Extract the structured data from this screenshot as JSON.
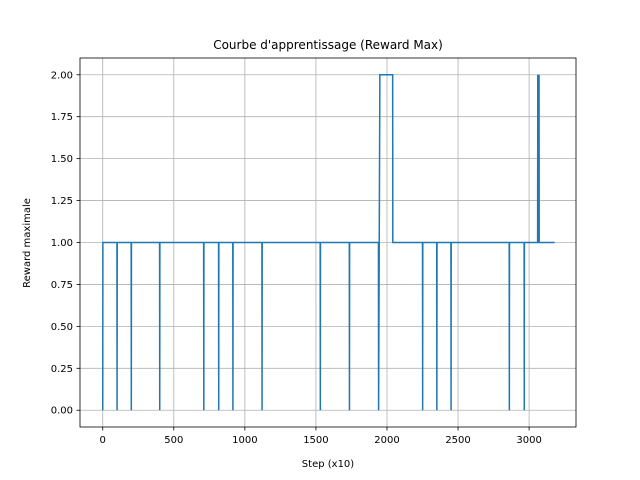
{
  "chart_data": {
    "type": "line",
    "title": "Courbe d'apprentissage (Reward Max)",
    "xlabel": "Step (x10)",
    "ylabel": "Reward maximale",
    "xlim": [
      -160,
      3330
    ],
    "ylim": [
      -0.1,
      2.1
    ],
    "xticks": [
      0,
      500,
      1000,
      1500,
      2000,
      2500,
      3000
    ],
    "yticks": [
      0.0,
      0.25,
      0.5,
      0.75,
      1.0,
      1.25,
      1.5,
      1.75,
      2.0
    ],
    "xtick_labels": [
      "0",
      "500",
      "1000",
      "1500",
      "2000",
      "2500",
      "3000"
    ],
    "ytick_labels": [
      "0.00",
      "0.25",
      "0.50",
      "0.75",
      "1.00",
      "1.25",
      "1.50",
      "1.75",
      "2.00"
    ],
    "grid": true,
    "color": "#1f77b4",
    "series": [
      {
        "name": "",
        "x": [
          0,
          1,
          100,
          101,
          102,
          200,
          201,
          202,
          400,
          401,
          402,
          710,
          711,
          712,
          815,
          816,
          817,
          915,
          916,
          917,
          1120,
          1121,
          1122,
          1530,
          1531,
          1532,
          1735,
          1736,
          1737,
          1940,
          1941,
          1950,
          2040,
          2041,
          2250,
          2251,
          2252,
          2350,
          2351,
          2352,
          2450,
          2451,
          2452,
          2860,
          2861,
          2862,
          2965,
          2966,
          2967,
          3060,
          3061,
          3062,
          3070,
          3071,
          3180
        ],
        "y": [
          0,
          1,
          1,
          0,
          1,
          1,
          0,
          1,
          1,
          0,
          1,
          1,
          0,
          1,
          1,
          0,
          1,
          1,
          0,
          1,
          1,
          0,
          1,
          1,
          0,
          1,
          1,
          0,
          1,
          1,
          0,
          2,
          2,
          1,
          1,
          0,
          1,
          1,
          0,
          1,
          1,
          0,
          1,
          1,
          0,
          1,
          1,
          0,
          1,
          1,
          2,
          1,
          2,
          1,
          1
        ]
      }
    ]
  }
}
